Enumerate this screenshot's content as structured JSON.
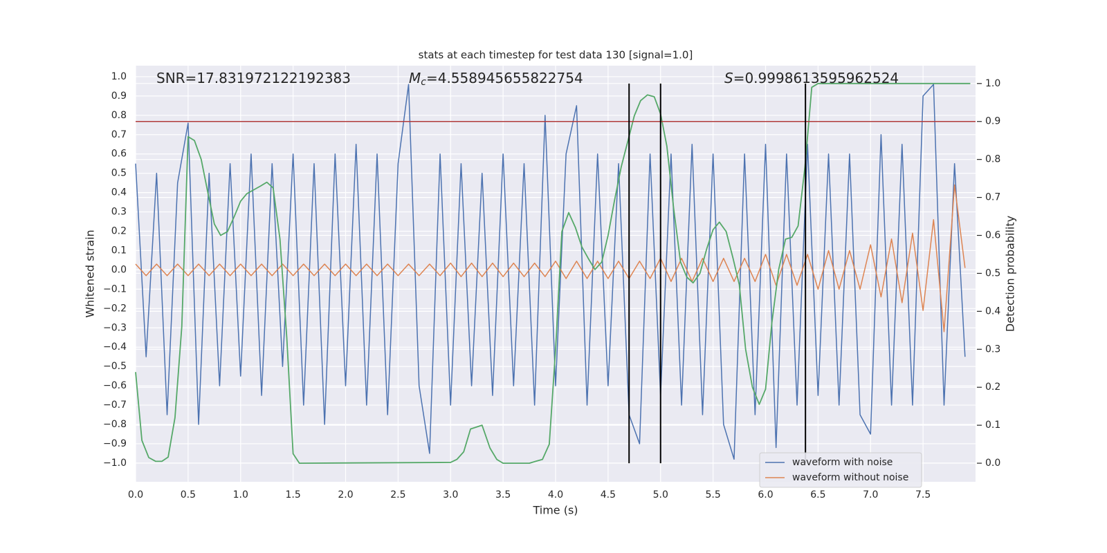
{
  "chart_data": {
    "type": "line",
    "title": "stats at each timestep for test data 130 [signal=1.0]",
    "xlabel": "Time (s)",
    "ylabel": "Whitened strain",
    "y2label": "Detection probability",
    "xlim": [
      0,
      8
    ],
    "ylim": [
      -1.097,
      1.057
    ],
    "y2lim": [
      -0.049,
      1.047
    ],
    "grid": true,
    "legend": "lower right",
    "xticks": [
      {
        "value": 0,
        "label": "0.0"
      },
      {
        "value": 0.5,
        "label": "0.5"
      },
      {
        "value": 1,
        "label": "1.0"
      },
      {
        "value": 1.5,
        "label": "1.5"
      },
      {
        "value": 2,
        "label": "2.0"
      },
      {
        "value": 2.5,
        "label": "2.5"
      },
      {
        "value": 3,
        "label": "3.0"
      },
      {
        "value": 3.5,
        "label": "3.5"
      },
      {
        "value": 4,
        "label": "4.0"
      },
      {
        "value": 4.5,
        "label": "4.5"
      },
      {
        "value": 5,
        "label": "5.0"
      },
      {
        "value": 5.5,
        "label": "5.5"
      },
      {
        "value": 6,
        "label": "6.0"
      },
      {
        "value": 6.5,
        "label": "6.5"
      },
      {
        "value": 7,
        "label": "7.0"
      },
      {
        "value": 7.5,
        "label": "7.5"
      }
    ],
    "yticks": [
      {
        "value": -1,
        "label": "−1.0"
      },
      {
        "value": -0.9,
        "label": "−0.9"
      },
      {
        "value": -0.8,
        "label": "−0.8"
      },
      {
        "value": -0.7,
        "label": "−0.7"
      },
      {
        "value": -0.6,
        "label": "−0.6"
      },
      {
        "value": -0.5,
        "label": "−0.5"
      },
      {
        "value": -0.4,
        "label": "−0.4"
      },
      {
        "value": -0.3,
        "label": "−0.3"
      },
      {
        "value": -0.2,
        "label": "−0.2"
      },
      {
        "value": -0.1,
        "label": "−0.1"
      },
      {
        "value": 0,
        "label": "0.0"
      },
      {
        "value": 0.1,
        "label": "0.1"
      },
      {
        "value": 0.2,
        "label": "0.2"
      },
      {
        "value": 0.3,
        "label": "0.3"
      },
      {
        "value": 0.4,
        "label": "0.4"
      },
      {
        "value": 0.5,
        "label": "0.5"
      },
      {
        "value": 0.6,
        "label": "0.6"
      },
      {
        "value": 0.7,
        "label": "0.7"
      },
      {
        "value": 0.8,
        "label": "0.8"
      },
      {
        "value": 0.9,
        "label": "0.9"
      },
      {
        "value": 1,
        "label": "1.0"
      }
    ],
    "y2ticks": [
      {
        "value": 0,
        "label": "0.0"
      },
      {
        "value": 0.1,
        "label": "0.1"
      },
      {
        "value": 0.2,
        "label": "0.2"
      },
      {
        "value": 0.3,
        "label": "0.3"
      },
      {
        "value": 0.4,
        "label": "0.4"
      },
      {
        "value": 0.5,
        "label": "0.5"
      },
      {
        "value": 0.6,
        "label": "0.6"
      },
      {
        "value": 0.7,
        "label": "0.7"
      },
      {
        "value": 0.8,
        "label": "0.8"
      },
      {
        "value": 0.9,
        "label": "0.9"
      },
      {
        "value": 1,
        "label": "1.0"
      }
    ],
    "x": [
      0.0,
      0.1,
      0.2,
      0.3,
      0.4,
      0.5,
      0.6,
      0.7,
      0.8,
      0.9,
      1.0,
      1.1,
      1.2,
      1.3,
      1.4,
      1.5,
      1.6,
      1.7,
      1.8,
      1.9,
      2.0,
      2.1,
      2.2,
      2.3,
      2.4,
      2.5,
      2.6,
      2.7,
      2.8,
      2.9,
      3.0,
      3.1,
      3.2,
      3.3,
      3.4,
      3.5,
      3.6,
      3.7,
      3.8,
      3.9,
      4.0,
      4.1,
      4.2,
      4.3,
      4.4,
      4.5,
      4.6,
      4.7,
      4.8,
      4.9,
      5.0,
      5.1,
      5.2,
      5.3,
      5.4,
      5.5,
      5.6,
      5.7,
      5.8,
      5.9,
      6.0,
      6.1,
      6.2,
      6.3,
      6.4,
      6.5,
      6.6,
      6.7,
      6.8,
      6.9,
      7.0,
      7.1,
      7.2,
      7.3,
      7.4,
      7.5,
      7.6,
      7.7,
      7.8,
      7.9
    ],
    "series": [
      {
        "name": "waveform with noise",
        "color": "#4c72b0",
        "values": [
          0.55,
          -0.45,
          0.5,
          -0.75,
          0.45,
          0.76,
          -0.8,
          0.5,
          -0.6,
          0.55,
          -0.55,
          0.6,
          -0.65,
          0.55,
          -0.5,
          0.6,
          -0.7,
          0.55,
          -0.8,
          0.6,
          -0.6,
          0.65,
          -0.7,
          0.6,
          -0.75,
          0.55,
          0.96,
          -0.6,
          -0.95,
          0.6,
          -0.7,
          0.55,
          -0.6,
          0.5,
          -0.65,
          0.6,
          -0.6,
          0.55,
          -0.7,
          0.8,
          -0.6,
          0.6,
          0.85,
          -0.7,
          0.6,
          -0.6,
          0.55,
          -0.75,
          -0.9,
          0.6,
          -0.65,
          0.6,
          -0.7,
          0.65,
          -0.75,
          0.6,
          -0.8,
          -0.98,
          0.6,
          -0.75,
          0.65,
          -0.92,
          0.6,
          -0.7,
          0.65,
          -0.65,
          0.6,
          -0.7,
          0.6,
          -0.75,
          -0.85,
          0.7,
          -0.7,
          0.65,
          -0.7,
          0.9,
          0.96,
          -0.7,
          0.55,
          -0.45
        ]
      },
      {
        "name": "waveform without noise",
        "color": "#dd8452",
        "values": [
          0.03,
          -0.03,
          0.03,
          -0.03,
          0.03,
          -0.03,
          0.03,
          -0.03,
          0.03,
          -0.03,
          0.03,
          -0.03,
          0.03,
          -0.03,
          0.03,
          -0.03,
          0.03,
          -0.03,
          0.03,
          -0.03,
          0.03,
          -0.03,
          0.03,
          -0.03,
          0.03,
          -0.03,
          0.03,
          -0.03,
          0.03,
          -0.03,
          0.035,
          -0.035,
          0.035,
          -0.035,
          0.035,
          -0.035,
          0.035,
          -0.035,
          0.035,
          -0.035,
          0.045,
          -0.045,
          0.045,
          -0.045,
          0.045,
          -0.045,
          0.045,
          -0.045,
          0.045,
          -0.045,
          0.06,
          -0.06,
          0.06,
          -0.06,
          0.06,
          -0.06,
          0.06,
          -0.06,
          0.06,
          -0.06,
          0.08,
          -0.08,
          0.08,
          -0.08,
          0.08,
          -0.1,
          0.1,
          -0.1,
          0.1,
          -0.1,
          0.13,
          -0.14,
          0.16,
          -0.17,
          0.19,
          -0.21,
          0.26,
          -0.32,
          0.44,
          0.01
        ]
      },
      {
        "color": "#55a868",
        "axis": "y2",
        "x": [
          0.0,
          0.06,
          0.125,
          0.19,
          0.25,
          0.31,
          0.375,
          0.44,
          0.5,
          0.56,
          0.625,
          0.69,
          0.75,
          0.81,
          0.875,
          0.94,
          1.0,
          1.06,
          1.125,
          1.19,
          1.25,
          1.31,
          1.375,
          1.44,
          1.5,
          1.56,
          3.0,
          3.06,
          3.125,
          3.19,
          3.3,
          3.375,
          3.44,
          3.5,
          3.75,
          3.81,
          3.875,
          3.94,
          4.0,
          4.06,
          4.125,
          4.19,
          4.25,
          4.31,
          4.375,
          4.44,
          4.5,
          4.56,
          4.625,
          4.69,
          4.75,
          4.81,
          4.875,
          4.94,
          5.0,
          5.06,
          5.125,
          5.19,
          5.25,
          5.31,
          5.375,
          5.44,
          5.5,
          5.56,
          5.625,
          5.69,
          5.75,
          5.81,
          5.875,
          5.94,
          6.0,
          6.06,
          6.125,
          6.19,
          6.25,
          6.31,
          6.375,
          6.44,
          6.5,
          7.95
        ],
        "values": [
          0.24,
          0.06,
          0.015,
          0.005,
          0.005,
          0.016,
          0.12,
          0.36,
          0.86,
          0.85,
          0.8,
          0.71,
          0.63,
          0.6,
          0.61,
          0.65,
          0.69,
          0.71,
          0.72,
          0.73,
          0.74,
          0.725,
          0.59,
          0.33,
          0.025,
          0.0,
          0.002,
          0.01,
          0.03,
          0.09,
          0.1,
          0.04,
          0.01,
          0.0,
          0.0,
          0.005,
          0.01,
          0.05,
          0.3,
          0.61,
          0.66,
          0.62,
          0.57,
          0.54,
          0.51,
          0.53,
          0.6,
          0.69,
          0.78,
          0.85,
          0.915,
          0.955,
          0.97,
          0.965,
          0.92,
          0.835,
          0.67,
          0.53,
          0.49,
          0.475,
          0.5,
          0.565,
          0.615,
          0.635,
          0.61,
          0.54,
          0.47,
          0.3,
          0.2,
          0.155,
          0.195,
          0.37,
          0.51,
          0.59,
          0.595,
          0.625,
          0.78,
          0.99,
          1.0,
          1.0
        ]
      }
    ],
    "hlines": [
      {
        "y": 0.9,
        "axis": "y2",
        "color": "#b03a3a"
      }
    ],
    "vlines": [
      {
        "x": 4.7,
        "ymin": 0,
        "ymax": 1,
        "axis": "y2",
        "color": "#000000"
      },
      {
        "x": 5.0,
        "ymin": 0,
        "ymax": 1,
        "axis": "y2",
        "color": "#000000"
      },
      {
        "x": 6.38,
        "ymin": 0,
        "ymax": 1,
        "axis": "y2",
        "color": "#000000"
      }
    ],
    "annotations": [
      {
        "text": "SNR=17.831972122192383"
      },
      {
        "symbol": "M",
        "subscript": "c",
        "text": "=4.558945655822754"
      },
      {
        "symbol": "S",
        "text": "=0.9998613595962524"
      }
    ]
  }
}
